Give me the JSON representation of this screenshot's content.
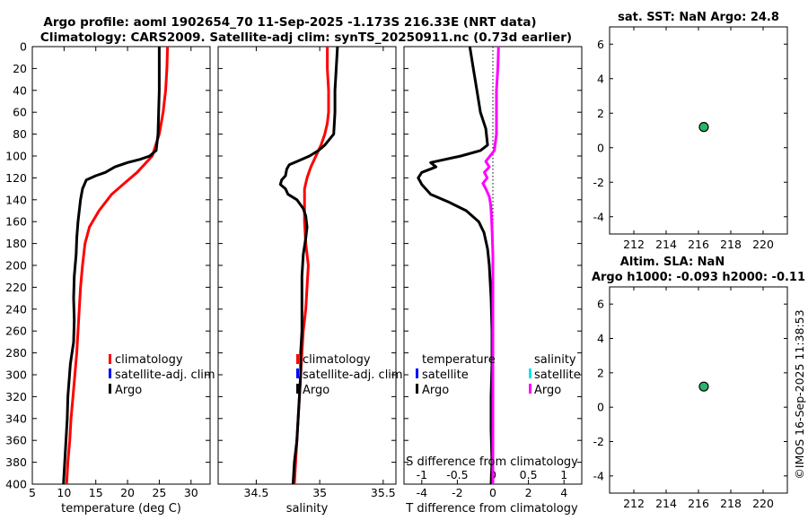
{
  "title": {
    "line1": "Argo profile: aoml 1902654_70 11-Sep-2025 -1.173S 216.33E (NRT data)",
    "line2": "Climatology: CARS2009. Satellite-adj clim: synTS_20250911.nc (0.73d earlier)"
  },
  "watermark": "©IMOS 16-Sep-2025 11:38:53",
  "colors": {
    "climatology": "#ff0000",
    "satellite": "#0000ff",
    "argo": "#000000",
    "sat_salinity": "#00e5e5",
    "argo_salinity": "#ff00ff",
    "marker": "#2db36b"
  },
  "chart_data": [
    {
      "id": "temperature",
      "type": "line",
      "xlabel": "temperature (deg C)",
      "xlim": [
        5,
        33
      ],
      "xticks": [
        "5",
        "10",
        "15",
        "20",
        "25",
        "30"
      ],
      "ylim": [
        0,
        400
      ],
      "yticks": [
        "0",
        "20",
        "40",
        "60",
        "80",
        "100",
        "120",
        "140",
        "160",
        "180",
        "200",
        "220",
        "240",
        "260",
        "280",
        "300",
        "320",
        "340",
        "360",
        "380",
        "400"
      ],
      "legend": {
        "items": [
          {
            "label": "climatology",
            "color": "#ff0000"
          },
          {
            "label": "satellite-adj. clim",
            "color": "#0000ff"
          },
          {
            "label": "Argo",
            "color": "#000000"
          }
        ]
      },
      "series": [
        {
          "name": "climatology",
          "color": "#ff0000",
          "points": [
            [
              26.3,
              0
            ],
            [
              26.2,
              20
            ],
            [
              26.0,
              40
            ],
            [
              25.6,
              60
            ],
            [
              25.0,
              80
            ],
            [
              23.9,
              100
            ],
            [
              21.5,
              115
            ],
            [
              19.5,
              125
            ],
            [
              17.5,
              135
            ],
            [
              15.5,
              150
            ],
            [
              14.0,
              165
            ],
            [
              13.3,
              180
            ],
            [
              12.9,
              200
            ],
            [
              12.6,
              220
            ],
            [
              12.4,
              240
            ],
            [
              12.2,
              260
            ],
            [
              12.0,
              280
            ],
            [
              11.7,
              300
            ],
            [
              11.4,
              320
            ],
            [
              11.1,
              340
            ],
            [
              10.9,
              360
            ],
            [
              10.6,
              380
            ],
            [
              10.4,
              400
            ]
          ]
        },
        {
          "name": "argo",
          "color": "#000000",
          "points": [
            [
              25.0,
              0
            ],
            [
              25.0,
              20
            ],
            [
              25.0,
              40
            ],
            [
              24.9,
              60
            ],
            [
              24.8,
              80
            ],
            [
              24.5,
              95
            ],
            [
              23.5,
              100
            ],
            [
              22.0,
              103
            ],
            [
              20.0,
              106
            ],
            [
              18.0,
              110
            ],
            [
              16.5,
              115
            ],
            [
              15.0,
              118
            ],
            [
              13.5,
              122
            ],
            [
              12.9,
              130
            ],
            [
              12.6,
              140
            ],
            [
              12.4,
              150
            ],
            [
              12.2,
              160
            ],
            [
              12.0,
              175
            ],
            [
              11.9,
              190
            ],
            [
              11.6,
              210
            ],
            [
              11.5,
              230
            ],
            [
              11.6,
              250
            ],
            [
              11.5,
              270
            ],
            [
              11.0,
              290
            ],
            [
              10.6,
              320
            ],
            [
              10.5,
              340
            ],
            [
              10.3,
              360
            ],
            [
              10.1,
              380
            ],
            [
              9.9,
              400
            ]
          ]
        }
      ]
    },
    {
      "id": "salinity",
      "type": "line",
      "xlabel": "salinity",
      "xlim": [
        34.2,
        35.6
      ],
      "xticks": [
        "34.5",
        "35",
        "35.5"
      ],
      "ylim": [
        0,
        400
      ],
      "legend": {
        "items": [
          {
            "label": "climatology",
            "color": "#ff0000"
          },
          {
            "label": "satellite-adj. clim",
            "color": "#0000ff"
          },
          {
            "label": "Argo",
            "color": "#000000"
          }
        ]
      },
      "series": [
        {
          "name": "climatology",
          "color": "#ff0000",
          "points": [
            [
              35.06,
              0
            ],
            [
              35.06,
              20
            ],
            [
              35.07,
              40
            ],
            [
              35.07,
              60
            ],
            [
              35.06,
              70
            ],
            [
              35.04,
              80
            ],
            [
              35.01,
              90
            ],
            [
              34.97,
              100
            ],
            [
              34.93,
              110
            ],
            [
              34.9,
              120
            ],
            [
              34.88,
              130
            ],
            [
              34.88,
              160
            ],
            [
              34.89,
              180
            ],
            [
              34.91,
              200
            ],
            [
              34.9,
              220
            ],
            [
              34.89,
              240
            ],
            [
              34.87,
              260
            ],
            [
              34.86,
              280
            ],
            [
              34.85,
              300
            ],
            [
              34.84,
              320
            ],
            [
              34.83,
              340
            ],
            [
              34.82,
              360
            ],
            [
              34.81,
              380
            ],
            [
              34.8,
              400
            ]
          ]
        },
        {
          "name": "argo",
          "color": "#000000",
          "points": [
            [
              35.14,
              0
            ],
            [
              35.13,
              20
            ],
            [
              35.12,
              40
            ],
            [
              35.12,
              60
            ],
            [
              35.11,
              80
            ],
            [
              35.04,
              90
            ],
            [
              34.99,
              95
            ],
            [
              34.92,
              100
            ],
            [
              34.82,
              105
            ],
            [
              34.76,
              108
            ],
            [
              34.74,
              112
            ],
            [
              34.73,
              118
            ],
            [
              34.7,
              122
            ],
            [
              34.69,
              126
            ],
            [
              34.73,
              130
            ],
            [
              34.75,
              135
            ],
            [
              34.82,
              140
            ],
            [
              34.87,
              148
            ],
            [
              34.89,
              155
            ],
            [
              34.9,
              165
            ],
            [
              34.89,
              175
            ],
            [
              34.87,
              190
            ],
            [
              34.86,
              210
            ],
            [
              34.86,
              230
            ],
            [
              34.86,
              260
            ],
            [
              34.85,
              280
            ],
            [
              34.85,
              300
            ],
            [
              34.84,
              320
            ],
            [
              34.83,
              340
            ],
            [
              34.82,
              360
            ],
            [
              34.8,
              380
            ],
            [
              34.79,
              400
            ]
          ]
        }
      ]
    },
    {
      "id": "difference",
      "type": "line",
      "xlabel": "T difference from climatology",
      "xlabel_top": "S difference from climatology",
      "xlim": [
        -5,
        5
      ],
      "xticks": [
        "-4",
        "-2",
        "0",
        "2",
        "4"
      ],
      "xlim_top": [
        -1.25,
        1.25
      ],
      "xticks_top": [
        "-1",
        "-0.5",
        "0",
        "0.5",
        "1"
      ],
      "ylim": [
        0,
        400
      ],
      "legend": {
        "temperature_title": "temperature",
        "salinity_title": "salinity",
        "temperature_items": [
          {
            "label": "satellite",
            "color": "#0000ff"
          },
          {
            "label": "Argo",
            "color": "#000000"
          }
        ],
        "salinity_items": [
          {
            "label": "satellite",
            "color": "#00e5e5"
          },
          {
            "label": "Argo",
            "color": "#ff00ff"
          }
        ]
      },
      "series": [
        {
          "name": "T argo diff",
          "color": "#000000",
          "points": [
            [
              -1.3,
              0
            ],
            [
              -1.1,
              20
            ],
            [
              -0.9,
              40
            ],
            [
              -0.7,
              60
            ],
            [
              -0.4,
              75
            ],
            [
              -0.3,
              90
            ],
            [
              -0.7,
              95
            ],
            [
              -1.8,
              100
            ],
            [
              -3.5,
              106
            ],
            [
              -3.2,
              110
            ],
            [
              -4.0,
              115
            ],
            [
              -4.2,
              120
            ],
            [
              -4.0,
              126
            ],
            [
              -3.5,
              135
            ],
            [
              -2.5,
              142
            ],
            [
              -1.5,
              150
            ],
            [
              -0.8,
              160
            ],
            [
              -0.5,
              170
            ],
            [
              -0.3,
              185
            ],
            [
              -0.2,
              200
            ],
            [
              -0.1,
              230
            ],
            [
              -0.05,
              260
            ],
            [
              -0.05,
              290
            ],
            [
              -0.1,
              320
            ],
            [
              -0.1,
              350
            ],
            [
              -0.05,
              380
            ],
            [
              -0.1,
              400
            ]
          ]
        },
        {
          "name": "S argo diff",
          "color": "#ff00ff",
          "points": [
            [
              0.08,
              0
            ],
            [
              0.07,
              20
            ],
            [
              0.05,
              40
            ],
            [
              0.05,
              60
            ],
            [
              0.05,
              80
            ],
            [
              0.02,
              95
            ],
            [
              -0.04,
              100
            ],
            [
              -0.1,
              105
            ],
            [
              -0.05,
              110
            ],
            [
              -0.12,
              115
            ],
            [
              -0.08,
              120
            ],
            [
              -0.14,
              125
            ],
            [
              -0.1,
              130
            ],
            [
              -0.05,
              137
            ],
            [
              -0.03,
              145
            ],
            [
              -0.02,
              155
            ],
            [
              -0.01,
              170
            ],
            [
              0.0,
              190
            ],
            [
              0.0,
              220
            ],
            [
              0.0,
              260
            ],
            [
              0.0,
              300
            ],
            [
              0.0,
              340
            ],
            [
              0.0,
              380
            ],
            [
              0.0,
              400
            ]
          ]
        }
      ]
    },
    {
      "id": "sat-sst",
      "type": "scatter",
      "title": "sat. SST: NaN Argo: 24.8",
      "xlim": [
        210.5,
        221.5
      ],
      "xticks": [
        "212",
        "214",
        "216",
        "218",
        "220"
      ],
      "ylim": [
        -5,
        7
      ],
      "yticks": [
        "6",
        "4",
        "2",
        "0",
        "-2",
        "-4"
      ],
      "points": [
        [
          216.33,
          1.2
        ]
      ]
    },
    {
      "id": "altim-sla",
      "type": "scatter",
      "title": "Altim. SLA: NaN",
      "title2": "Argo h1000: -0.093 h2000: -0.11",
      "xlim": [
        210.5,
        221.5
      ],
      "xticks": [
        "212",
        "214",
        "216",
        "218",
        "220"
      ],
      "ylim": [
        -5,
        7
      ],
      "yticks": [
        "6",
        "4",
        "2",
        "0",
        "-2",
        "-4"
      ],
      "points": [
        [
          216.33,
          1.2
        ]
      ]
    }
  ]
}
